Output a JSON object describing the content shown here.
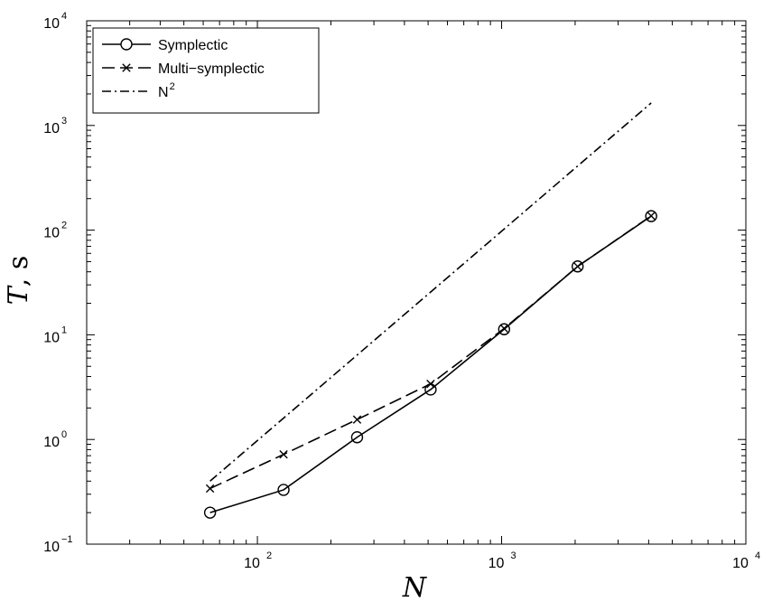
{
  "chart_data": {
    "type": "line",
    "title": "",
    "xlabel": "N",
    "ylabel": {
      "var": "T",
      "unit": ", s"
    },
    "xscale": "log",
    "yscale": "log",
    "xlim": [
      20,
      10000
    ],
    "ylim": [
      0.1,
      10000
    ],
    "grid": false,
    "legend_position": "top-left",
    "x_ticks": [
      {
        "value": 100,
        "base": "10",
        "exp": "2"
      },
      {
        "value": 1000,
        "base": "10",
        "exp": "3"
      },
      {
        "value": 10000,
        "base": "10",
        "exp": "4"
      }
    ],
    "y_ticks": [
      {
        "value": 0.1,
        "base": "10",
        "exp": "−1"
      },
      {
        "value": 1,
        "base": "10",
        "exp": "0"
      },
      {
        "value": 10,
        "base": "10",
        "exp": "1"
      },
      {
        "value": 100,
        "base": "10",
        "exp": "2"
      },
      {
        "value": 1000,
        "base": "10",
        "exp": "3"
      },
      {
        "value": 10000,
        "base": "10",
        "exp": "4"
      }
    ],
    "series": [
      {
        "name": "Symplectic",
        "line_style": "solid",
        "marker": "circle",
        "color": "#000000",
        "x": [
          64,
          128,
          256,
          512,
          1024,
          2048,
          4096
        ],
        "y": [
          0.2,
          0.33,
          1.05,
          3.0,
          11.3,
          45,
          136
        ]
      },
      {
        "name": "Multi−symplectic",
        "line_style": "dashed",
        "marker": "x",
        "color": "#000000",
        "x": [
          64,
          128,
          256,
          512,
          1024,
          2048,
          4096
        ],
        "y": [
          0.34,
          0.72,
          1.55,
          3.4,
          11.5,
          45,
          137
        ]
      },
      {
        "name": "N",
        "name_superscript": "2",
        "line_style": "dashdot",
        "marker": "none",
        "color": "#000000",
        "x": [
          64,
          4096
        ],
        "y": [
          0.4,
          1640
        ]
      }
    ]
  }
}
